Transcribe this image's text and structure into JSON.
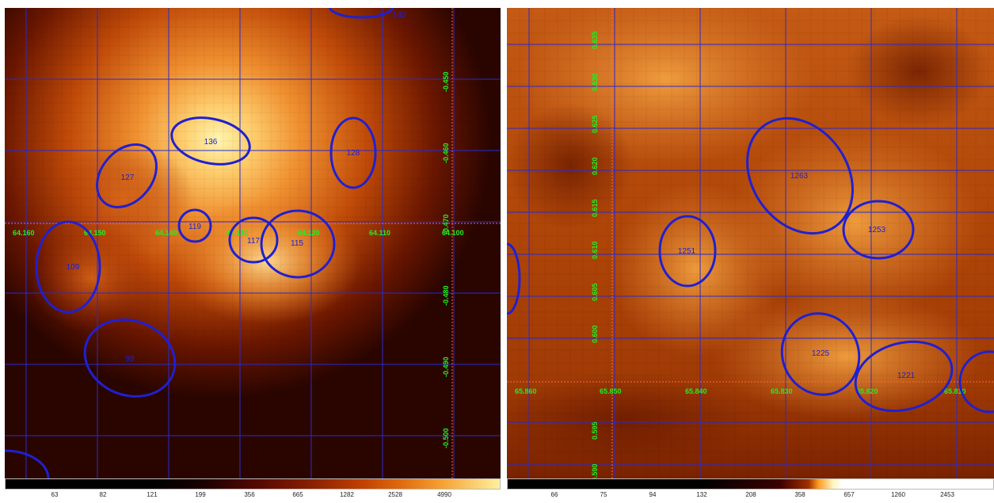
{
  "left_panel": {
    "regions": [
      {
        "id": "regions-1",
        "label": "136"
      },
      {
        "id": "regions-2",
        "label": "127"
      },
      {
        "id": "regions-3",
        "label": "128"
      },
      {
        "id": "regions-4",
        "label": "119"
      },
      {
        "id": "regions-5",
        "label": "117"
      },
      {
        "id": "regions-6",
        "label": "115"
      },
      {
        "id": "regions-7",
        "label": "109"
      },
      {
        "id": "regions-8",
        "label": "99"
      },
      {
        "id": "regions-9",
        "label": "140"
      }
    ],
    "ra_labels": [
      "64.160",
      "64.150",
      "64.140",
      "64.130",
      "64.120",
      "64.110",
      "64.100"
    ],
    "dec_labels": [
      "-0.450",
      "-0.460",
      "-0.470",
      "-0.480",
      "-0.490",
      "-0.500"
    ],
    "colorbar_ticks": [
      "63",
      "82",
      "121",
      "199",
      "356",
      "665",
      "1282",
      "2528",
      "4990"
    ]
  },
  "right_panel": {
    "regions": [
      {
        "id": "regions-1",
        "label": "1263"
      },
      {
        "id": "regions-2",
        "label": "1253"
      },
      {
        "id": "regions-3",
        "label": "1251"
      },
      {
        "id": "regions-4",
        "label": "1225"
      },
      {
        "id": "regions-5",
        "label": "1221"
      }
    ],
    "ra_labels": [
      "65.860",
      "65.850",
      "65.840",
      "65.830",
      "65.820",
      "65.810"
    ],
    "dec_labels": [
      "0.635",
      "0.630",
      "0.625",
      "0.620",
      "0.615",
      "0.610",
      "0.605",
      "0.600",
      "0.595",
      "0.590",
      "0.585"
    ],
    "colorbar_ticks": [
      "66",
      "75",
      "94",
      "132",
      "208",
      "358",
      "657",
      "1260",
      "2453"
    ]
  },
  "colors": {
    "region_outline": "#2020d0",
    "grid_line": "#2a2acc",
    "coord_label": "#22ee22",
    "axis_line": "#ff6a3a"
  }
}
